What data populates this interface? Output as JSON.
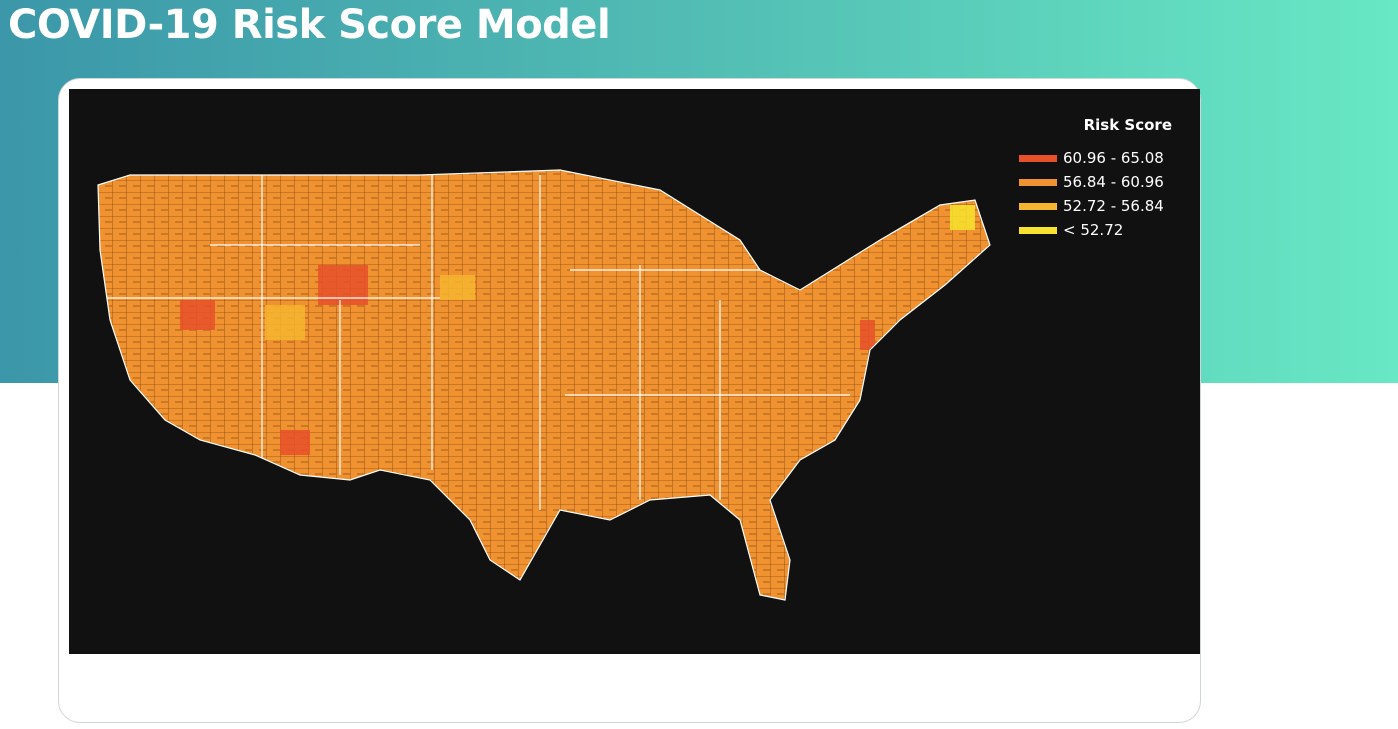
{
  "header": {
    "title": "COVID-19 Risk Score Model"
  },
  "map": {
    "legend": {
      "title": "Risk Score",
      "items": [
        {
          "label": "60.96 - 65.08",
          "color": "#e8502a"
        },
        {
          "label": "56.84 - 60.96",
          "color": "#f0922f"
        },
        {
          "label": "52.72 - 56.84",
          "color": "#f5b52e"
        },
        {
          "label": "< 52.72",
          "color": "#f7e32d"
        }
      ]
    }
  }
}
